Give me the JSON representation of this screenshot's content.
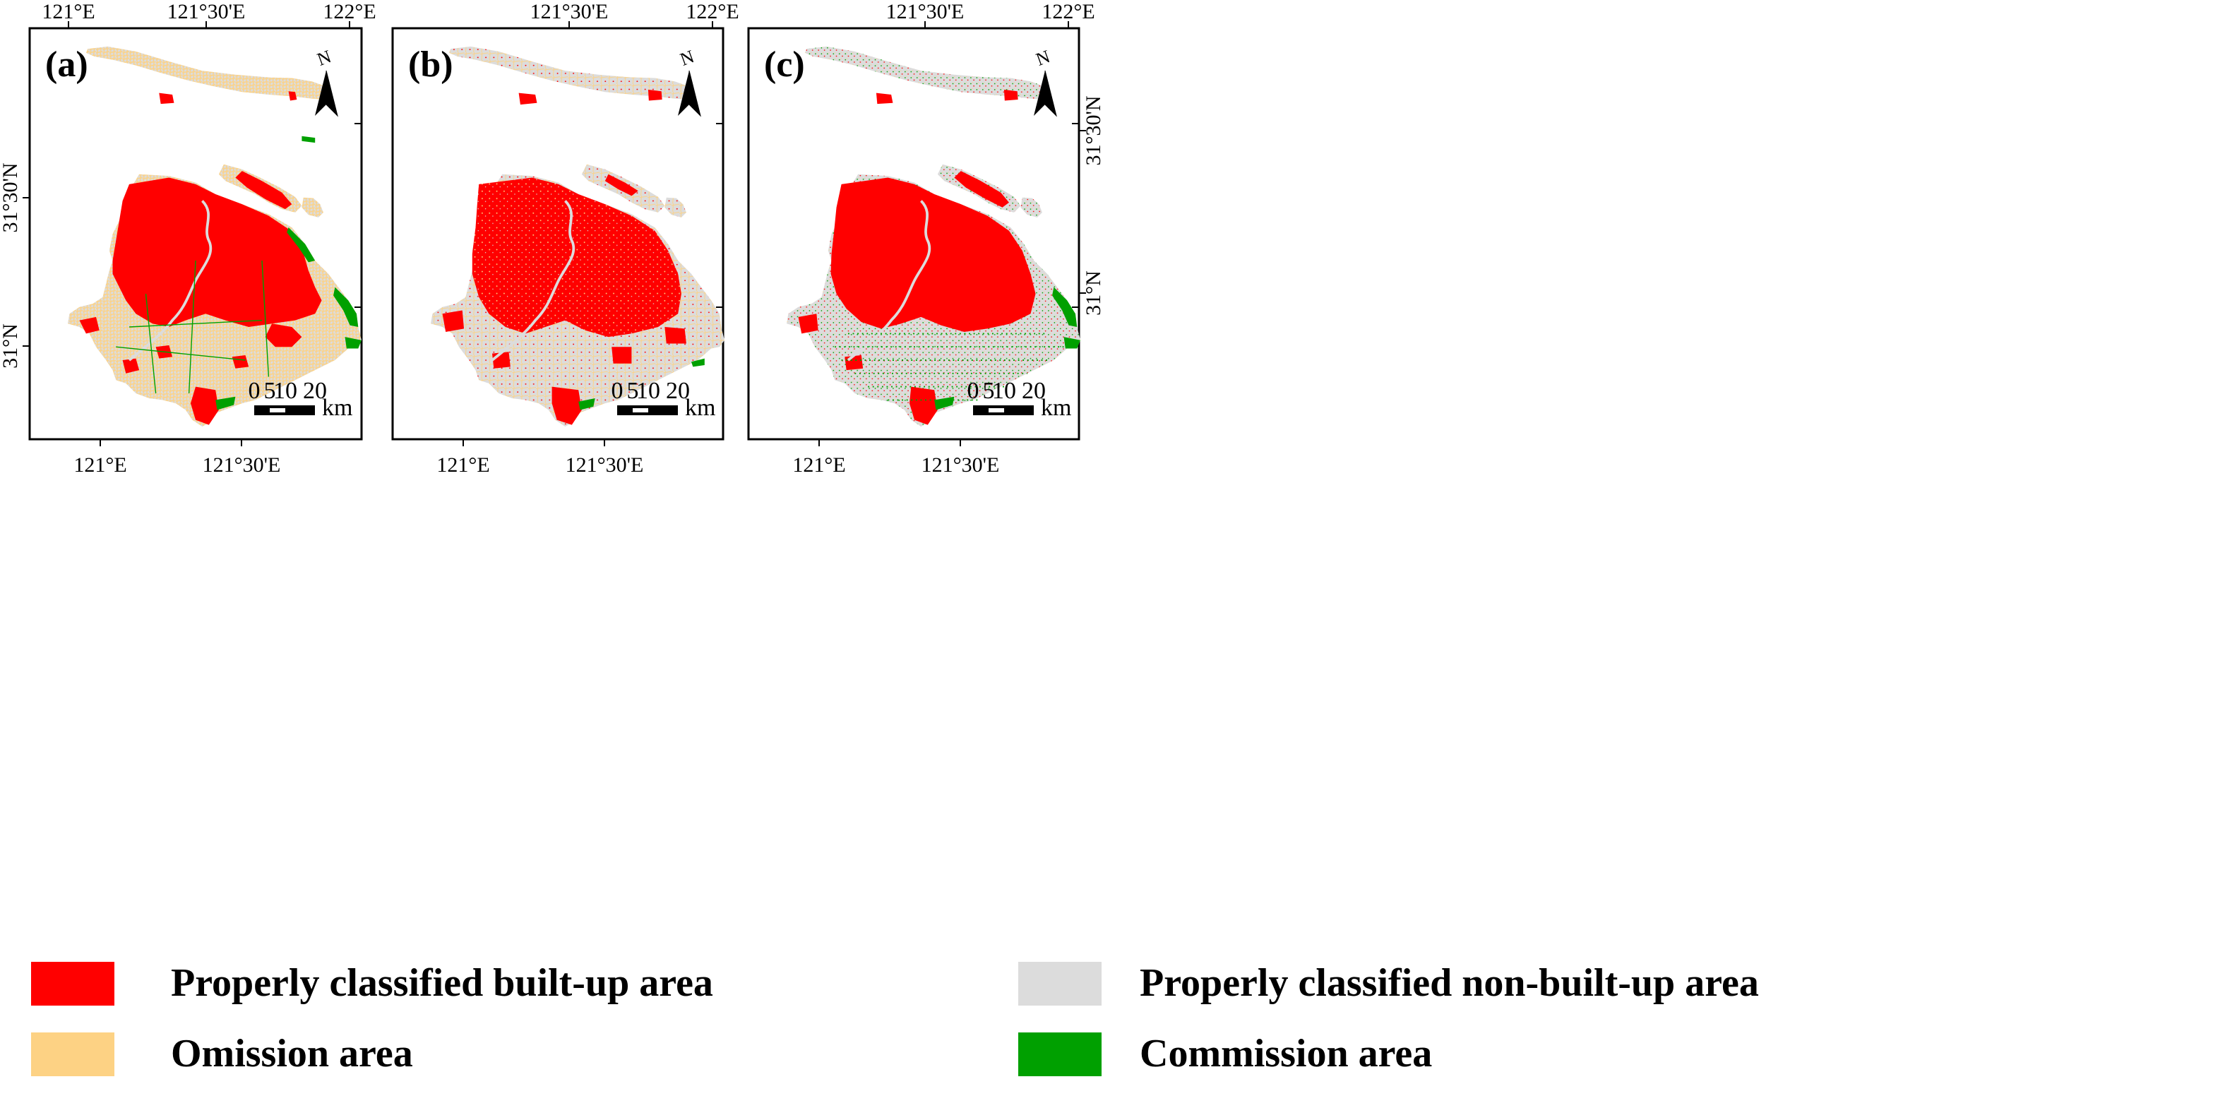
{
  "figure": {
    "panels": [
      {
        "label": "(a)",
        "top_ticks": [
          "121°E",
          "121°30'E",
          "122°E"
        ],
        "bottom_ticks": [
          "121°E",
          "121°30'E"
        ],
        "left_ticks": [
          "31°30'N",
          "31°N"
        ],
        "right_ticks": []
      },
      {
        "label": "(b)",
        "top_ticks": [
          "121°30'E",
          "122°E"
        ],
        "bottom_ticks": [
          "121°E",
          "121°30'E"
        ],
        "left_ticks": [],
        "right_ticks": []
      },
      {
        "label": "(c)",
        "top_ticks": [
          "121°30'E",
          "122°E"
        ],
        "bottom_ticks": [
          "121°E",
          "121°30'E"
        ],
        "left_ticks": [],
        "right_ticks": [
          "31°30'N",
          "31°N"
        ]
      }
    ],
    "north_arrow_label": "N",
    "scale_bar": {
      "numbers": [
        "0",
        "5",
        "10",
        "20"
      ],
      "unit": "km"
    }
  },
  "legend": {
    "items": [
      {
        "label": "Properly classified built-up area",
        "color": "#ff0000"
      },
      {
        "label": "Properly classified non-built-up area",
        "color": "#dcdcdc"
      },
      {
        "label": "Omission area",
        "color": "#fdd284"
      },
      {
        "label": "Commission area",
        "color": "#00a000"
      }
    ]
  },
  "colors": {
    "builtup": "#ff0000",
    "nonbuilt": "#dcdcdc",
    "omission": "#fdd284",
    "commission": "#00a000",
    "frame": "#000000"
  }
}
